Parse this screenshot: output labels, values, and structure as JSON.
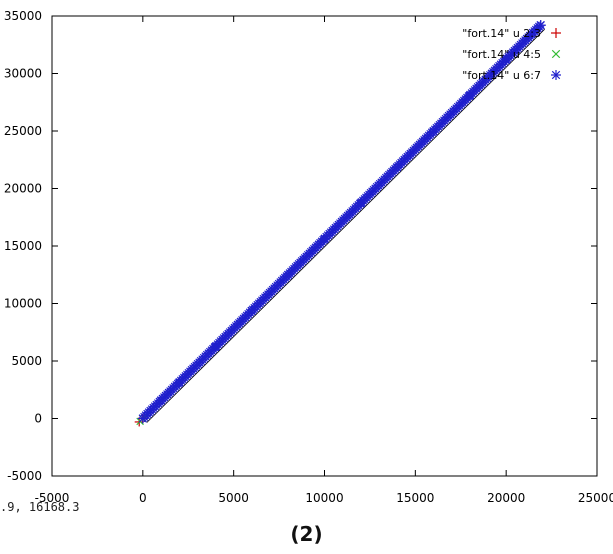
{
  "chart_data": {
    "type": "scatter",
    "title": "",
    "xlabel": "",
    "ylabel": "",
    "xlim": [
      -5000,
      25000
    ],
    "ylim": [
      -5000,
      35000
    ],
    "x_ticks": [
      "-5000",
      "0",
      "5000",
      "10000",
      "15000",
      "20000",
      "25000"
    ],
    "y_ticks": [
      "-5000",
      "0",
      "5000",
      "10000",
      "15000",
      "20000",
      "25000",
      "30000",
      "35000"
    ],
    "grid": false,
    "legend_position": "top-right",
    "series": [
      {
        "name": "\"fort.14\" u 2:3",
        "marker": "+",
        "color": "#cc0000",
        "x": [
          -200,
          0,
          1000,
          5000,
          10000,
          15000,
          20000,
          21900
        ],
        "y": [
          -300,
          0,
          1560,
          7800,
          15600,
          23400,
          31200,
          34200
        ]
      },
      {
        "name": "\"fort.14\" u 4:5",
        "marker": "x",
        "color": "#33bb33",
        "x": [
          -150,
          0,
          1000,
          5000,
          10000,
          15000,
          20000,
          21900
        ],
        "y": [
          -250,
          0,
          1560,
          7800,
          15600,
          23400,
          31200,
          34200
        ]
      },
      {
        "name": "\"fort.14\" u 6:7",
        "marker": "*",
        "color": "#1f1fcc",
        "x": [
          0,
          1000,
          2000,
          4000,
          6000,
          8000,
          10000,
          12000,
          14000,
          16000,
          18000,
          20000,
          21900
        ],
        "y": [
          0,
          1560,
          3120,
          6240,
          9360,
          12480,
          15600,
          18720,
          21840,
          24960,
          28080,
          31200,
          34200
        ]
      }
    ]
  },
  "status": {
    "readout": ".9, 16168.3"
  },
  "caption": {
    "text": "(2)"
  }
}
